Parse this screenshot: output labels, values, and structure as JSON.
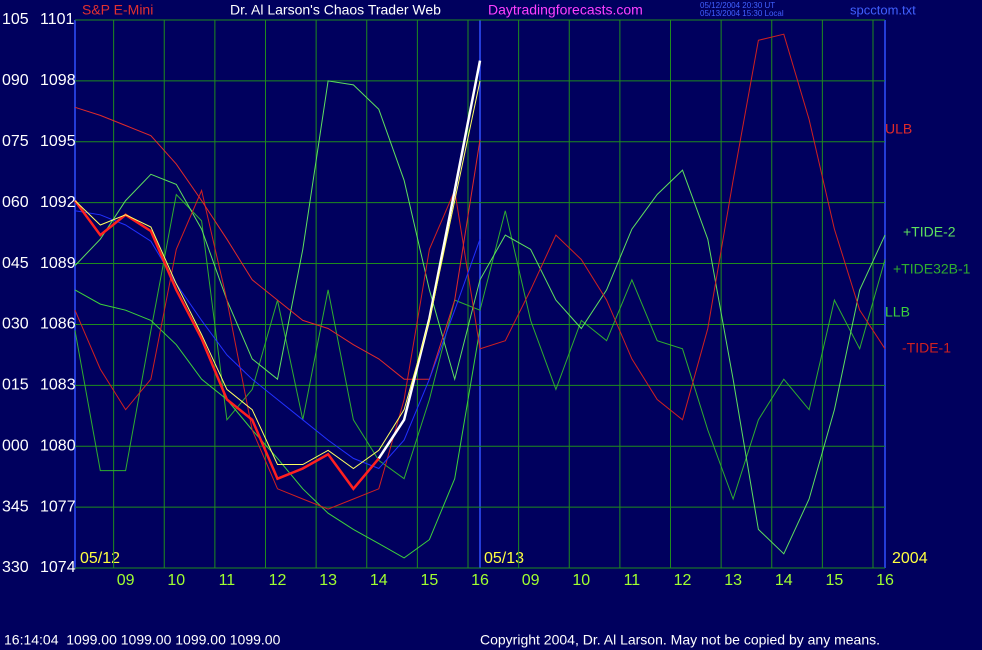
{
  "chart_data": {
    "type": "line",
    "title": "Dr. Al Larson's Chaos Trader Web",
    "instrument": "S&P E-Mini",
    "website": "Daytradingforecasts.com",
    "timestamps": [
      "05/12/2004 20:30 UT",
      "05/13/2004 15:30 Local"
    ],
    "file": "spcctom.txt",
    "status": "16:14:04  1099.00 1099.00 1099.00 1099.00",
    "copyright": "Copyright 2004, Dr. Al Larson. May not be copied by any means.",
    "date_labels": [
      "05/12",
      "05/13",
      "2004"
    ],
    "grid": true,
    "xlim": [
      0,
      16
    ],
    "xticks": [
      {
        "value": 1,
        "label": "09"
      },
      {
        "value": 2,
        "label": "10"
      },
      {
        "value": 3,
        "label": "11"
      },
      {
        "value": 4,
        "label": "12"
      },
      {
        "value": 5,
        "label": "13"
      },
      {
        "value": 6,
        "label": "14"
      },
      {
        "value": 7,
        "label": "15"
      },
      {
        "value": 8,
        "label": "16"
      },
      {
        "value": 9,
        "label": "09"
      },
      {
        "value": 10,
        "label": "10"
      },
      {
        "value": 11,
        "label": "11"
      },
      {
        "value": 12,
        "label": "12"
      },
      {
        "value": 13,
        "label": "13"
      },
      {
        "value": 14,
        "label": "14"
      },
      {
        "value": 15,
        "label": "15"
      },
      {
        "value": 16,
        "label": "16"
      }
    ],
    "ylim": [
      1074,
      1101
    ],
    "yticks": [
      1074,
      1077,
      1080,
      1083,
      1086,
      1089,
      1092,
      1095,
      1098,
      1101
    ],
    "y2lim": [
      330,
      465
    ],
    "y2ticks": [
      330,
      345,
      {
        "value": 360,
        "label": "000"
      },
      {
        "value": 375,
        "label": "015"
      },
      {
        "value": 390,
        "label": "030"
      },
      {
        "value": 405,
        "label": "045"
      },
      {
        "value": 420,
        "label": "060"
      },
      {
        "value": 435,
        "label": "075"
      },
      {
        "value": 450,
        "label": "090"
      },
      {
        "value": 465,
        "label": "105"
      }
    ],
    "x": [
      0,
      0.5,
      1,
      1.5,
      2,
      2.5,
      3,
      3.5,
      4,
      4.5,
      5,
      5.5,
      6,
      6.5,
      7,
      7.5,
      8,
      8.5,
      9,
      9.5,
      10,
      10.5,
      11,
      11.5,
      12,
      12.5,
      13,
      13.5,
      14,
      14.5,
      15,
      15.5,
      16
    ],
    "series": [
      {
        "name": "+TIDE32B-1",
        "color": "#2fae2f",
        "values": [
          1085.7,
          1078.8,
          1078.8,
          1085.7,
          1092.4,
          1091.1,
          1081.3,
          1082.8,
          1087.2,
          1081.3,
          1087.7,
          1081.3,
          1079.3,
          1078.4,
          1082.3,
          1087.2,
          1086.7,
          1091.6,
          1086.2,
          1082.8,
          1086.2,
          1085.2,
          1088.2,
          1085.2,
          1084.8,
          1080.8,
          1077.4,
          1081.3,
          1083.3,
          1081.8,
          1087.2,
          1084.8,
          1089.2
        ]
      },
      {
        "name": "LLB",
        "color": "#3cd23c",
        "values": [
          1087.7,
          1087.0,
          1086.7,
          1086.2,
          1085.0,
          1083.3,
          1082.3,
          1080.8,
          1079.4,
          1077.9,
          1076.7,
          1075.9,
          1075.2,
          1074.5,
          1075.4,
          1078.4,
          1085.8,
          null,
          null,
          null,
          null,
          null,
          null,
          null,
          null,
          null,
          null,
          null,
          null,
          null,
          null,
          null,
          null
        ]
      },
      {
        "name": "+TIDE-2",
        "color": "#5ee05e",
        "values": [
          1088.9,
          1090.2,
          1092.1,
          1093.4,
          1092.9,
          1090.7,
          1087.2,
          1084.3,
          1083.3,
          1089.7,
          1098.0,
          1097.8,
          1096.6,
          1093.1,
          1087.7,
          1083.3,
          1088.2,
          1090.4,
          1089.7,
          1087.2,
          1085.8,
          1087.7,
          1090.7,
          1092.4,
          1093.6,
          1090.2,
          1083.3,
          1075.9,
          1074.7,
          1077.4,
          1081.8,
          1087.7,
          1090.4
        ]
      },
      {
        "name": "-TIDE-1",
        "color": "#d02020",
        "values": [
          1086.7,
          1083.8,
          1081.8,
          1083.3,
          1089.7,
          1092.6,
          1087.2,
          1080.8,
          1077.9,
          1077.4,
          1076.9,
          1077.4,
          1077.9,
          1082.3,
          1089.7,
          1092.6,
          1084.8,
          1085.2,
          1087.7,
          1090.4,
          1089.2,
          1087.2,
          1084.3,
          1082.3,
          1081.3,
          1085.8,
          1093.1,
          1100.0,
          1100.3,
          1096.1,
          1090.7,
          1086.7,
          1084.8
        ]
      },
      {
        "name": "ULB",
        "color": "#e02a2a",
        "values": [
          1096.7,
          1096.3,
          1095.8,
          1095.3,
          1093.9,
          1092.1,
          1090.2,
          1088.2,
          1087.2,
          1086.2,
          1085.8,
          1085.0,
          1084.3,
          1083.3,
          1083.3,
          1087.2,
          1095.1,
          null,
          null,
          null,
          null,
          null,
          null,
          null,
          null,
          null,
          null,
          null,
          null,
          null,
          null,
          null,
          null
        ]
      },
      {
        "color": "#2030ff",
        "values": [
          1091.6,
          1091.4,
          1090.9,
          1090.1,
          1088.0,
          1086.2,
          1084.5,
          1083.3,
          1082.3,
          1081.3,
          1080.3,
          1079.4,
          1078.9,
          1080.3,
          1083.3,
          1086.7,
          1090.2,
          null,
          null,
          null,
          null,
          null,
          null,
          null,
          null,
          null,
          null,
          null,
          null,
          null,
          null,
          null,
          null
        ]
      },
      {
        "color": "#ff2020",
        "values": [
          1092.1,
          1090.4,
          1091.4,
          1090.6,
          1087.7,
          1085.3,
          1082.3,
          1081.3,
          1078.4,
          1078.9,
          1079.6,
          1077.9,
          1079.4,
          null,
          null,
          null,
          null,
          null,
          null,
          null,
          null,
          null,
          null,
          null,
          null,
          null,
          null,
          null,
          null,
          null,
          null,
          null,
          null
        ]
      },
      {
        "color": "#ffffff",
        "values": [
          null,
          null,
          null,
          null,
          null,
          null,
          null,
          null,
          null,
          null,
          null,
          null,
          1079.4,
          1081.3,
          1086.3,
          1092.6,
          1099.0,
          null,
          null,
          null,
          null,
          null,
          null,
          null,
          null,
          null,
          null,
          null,
          null,
          null,
          null,
          null,
          null
        ]
      },
      {
        "color": "#ffff60",
        "values": [
          1092.1,
          1090.9,
          1091.4,
          1090.8,
          1088.0,
          1085.5,
          1082.8,
          1081.8,
          1079.1,
          1079.1,
          1079.8,
          1078.9,
          1079.8,
          1081.8,
          1086.2,
          1092.1,
          1098.0,
          null,
          null,
          null,
          null,
          null,
          null,
          null,
          null,
          null,
          null,
          null,
          null,
          null,
          null,
          null,
          null
        ]
      }
    ]
  }
}
